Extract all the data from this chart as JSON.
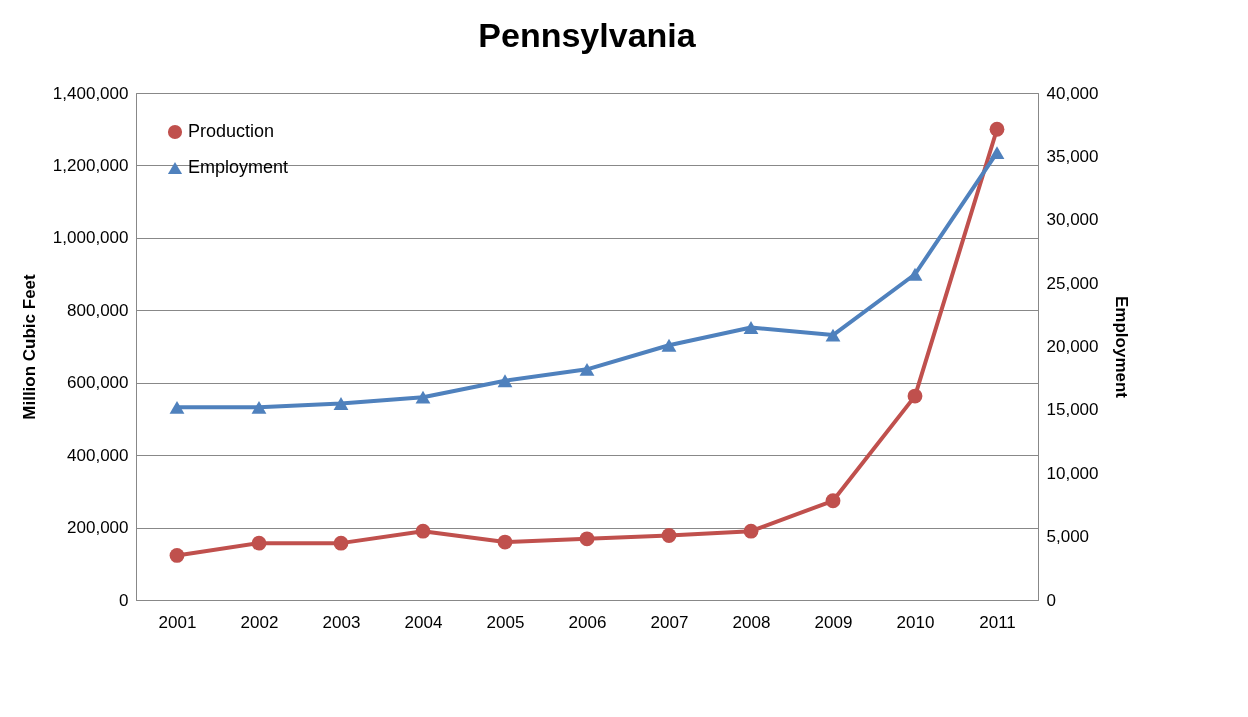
{
  "chart_data": {
    "type": "line",
    "title": "Pennsylvania",
    "ylabel": "Million Cubic Feet",
    "y2label": "Employment",
    "categories": [
      "2001",
      "2002",
      "2003",
      "2004",
      "2005",
      "2006",
      "2007",
      "2008",
      "2009",
      "2010",
      "2011"
    ],
    "series": [
      {
        "name": "Production",
        "color": "#c0504d",
        "marker": "circle",
        "values": [
          123000,
          157000,
          157000,
          190000,
          160000,
          169000,
          178000,
          190000,
          274000,
          563000,
          1300000
        ]
      },
      {
        "name": "Employment",
        "color": "#4f81bd",
        "marker": "triangle",
        "axis": "y2",
        "values": [
          15200,
          15200,
          15500,
          16000,
          17300,
          18200,
          20100,
          21500,
          20900,
          25700,
          35300
        ]
      }
    ],
    "ylim": [
      0,
      1400000
    ],
    "yticks": [
      0,
      {
        "value": 200000,
        "label": "200,000"
      },
      {
        "value": 400000,
        "label": "400,000"
      },
      {
        "value": 600000,
        "label": "600,000"
      },
      {
        "value": 800000,
        "label": "800,000"
      },
      {
        "value": 1000000,
        "label": "1,000,000"
      },
      {
        "value": 1200000,
        "label": "1,200,000"
      },
      {
        "value": 1400000,
        "label": "1,400,000"
      }
    ],
    "y2lim": [
      0,
      40000
    ],
    "y2ticks": [
      0,
      {
        "value": 5000,
        "label": "5,000"
      },
      {
        "value": 10000,
        "label": "10,000"
      },
      {
        "value": 15000,
        "label": "15,000"
      },
      {
        "value": 20000,
        "label": "20,000"
      },
      {
        "value": 25000,
        "label": "25,000"
      },
      {
        "value": 30000,
        "label": "30,000"
      },
      {
        "value": 35000,
        "label": "35,000"
      },
      {
        "value": 40000,
        "label": "40,000"
      }
    ],
    "grid": "y",
    "legend": "top left",
    "line_style": "solid"
  }
}
